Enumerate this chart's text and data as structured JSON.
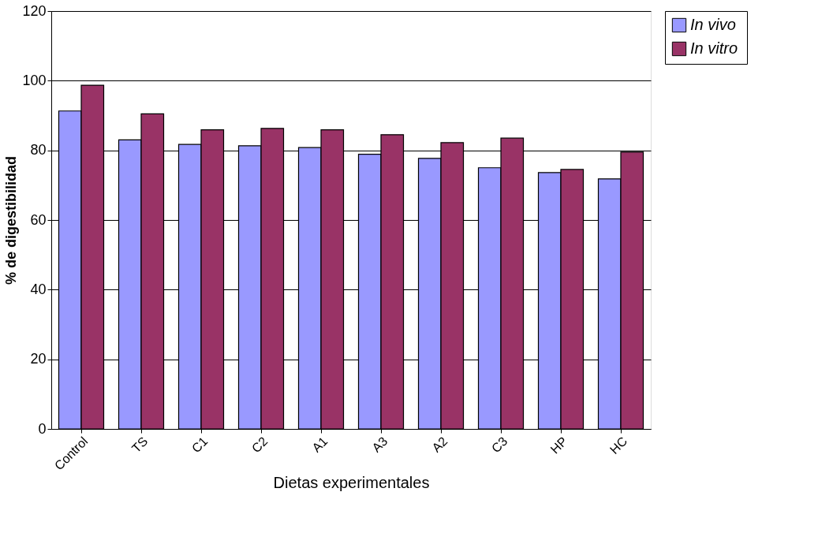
{
  "chart_data": {
    "type": "bar",
    "xlabel": "Dietas experimentales",
    "ylabel": "% de digestibilidad",
    "categories": [
      "Control",
      "TS",
      "C1",
      "C2",
      "A1",
      "A3",
      "A2",
      "C3",
      "HP",
      "HC"
    ],
    "series": [
      {
        "name": "In  vivo",
        "color": "#9999ff",
        "values": [
          91.3,
          83.0,
          81.7,
          81.3,
          80.8,
          78.9,
          77.7,
          75.0,
          73.6,
          71.8
        ]
      },
      {
        "name": "In vitro",
        "color": "#993366",
        "values": [
          98.7,
          90.5,
          85.9,
          86.3,
          85.9,
          84.5,
          82.2,
          83.5,
          74.5,
          79.5
        ]
      }
    ],
    "ylim": [
      0,
      120
    ],
    "yticks": [
      0,
      20,
      40,
      60,
      80,
      100,
      120
    ],
    "grid": "y",
    "legend": "right"
  }
}
